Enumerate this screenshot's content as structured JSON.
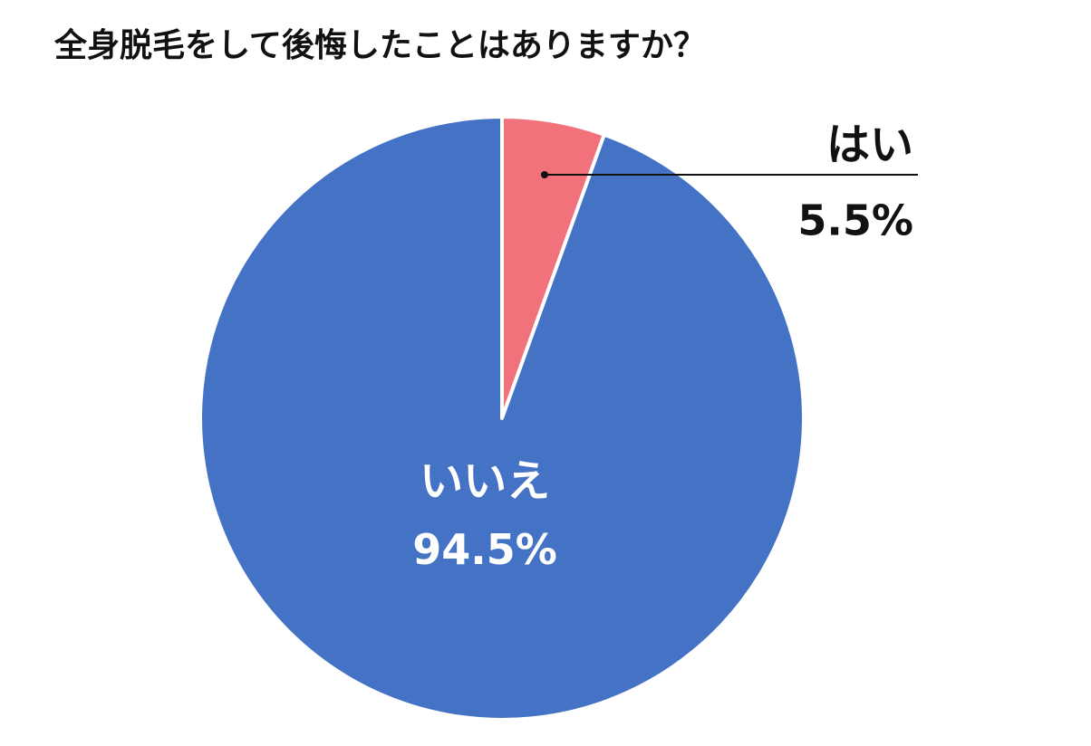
{
  "chart_data": {
    "type": "pie",
    "title": "全身脱毛をして後悔したことはありますか？",
    "categories": [
      "はい",
      "いいえ"
    ],
    "values": [
      5.5,
      94.5
    ],
    "value_labels": [
      "5.5%",
      "94.5%"
    ],
    "colors": [
      "#f2727b",
      "#4472c4"
    ]
  }
}
